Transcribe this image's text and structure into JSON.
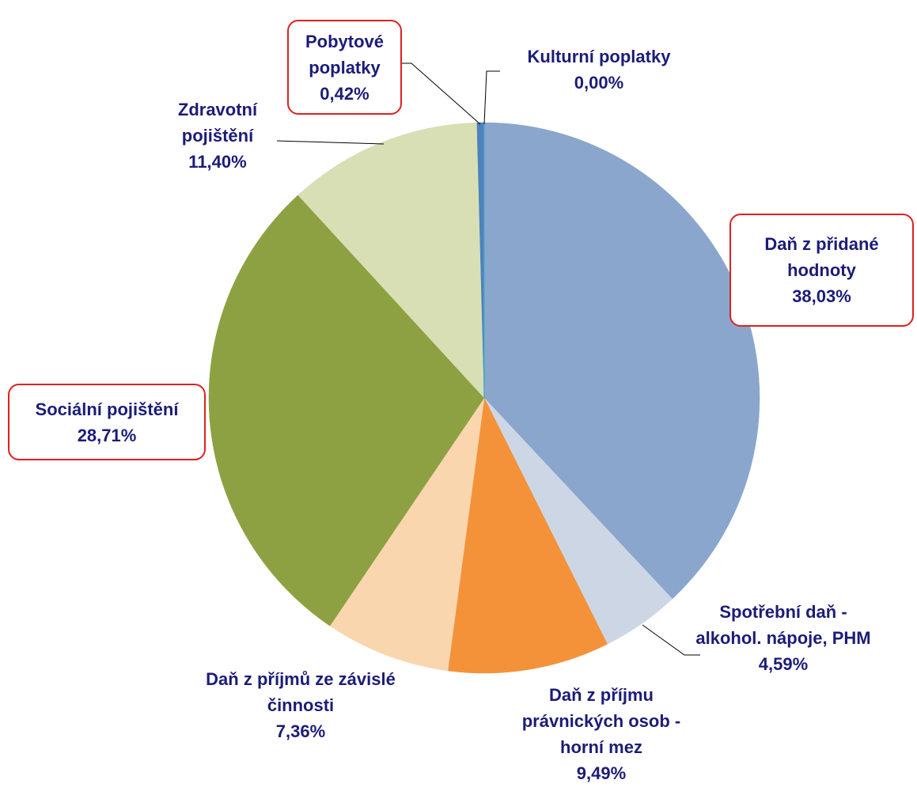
{
  "chart_data": {
    "type": "pie",
    "categories": [
      "Daň z přidané hodnoty",
      "Spotřební daň - alkohol. nápoje, PHM",
      "Daň z příjmu právnických osob - horní mez",
      "Daň z příjmů ze závislé činnosti",
      "Sociální pojištění",
      "Zdravotní pojištění",
      "Pobytové poplatky",
      "Kulturní poplatky"
    ],
    "values": [
      38.03,
      4.59,
      9.49,
      7.36,
      28.71,
      11.4,
      0.42,
      0.0
    ],
    "value_labels": [
      "38,03%",
      "4,59%",
      "9,49%",
      "7,36%",
      "28,71%",
      "11,40%",
      "0,42%",
      "0,00%"
    ],
    "colors": [
      "#8aa6cc",
      "#cdd6e4",
      "#f4923a",
      "#f9d6ae",
      "#8ea142",
      "#d8dfb5",
      "#4f81bd",
      "#4aacc6"
    ]
  }
}
